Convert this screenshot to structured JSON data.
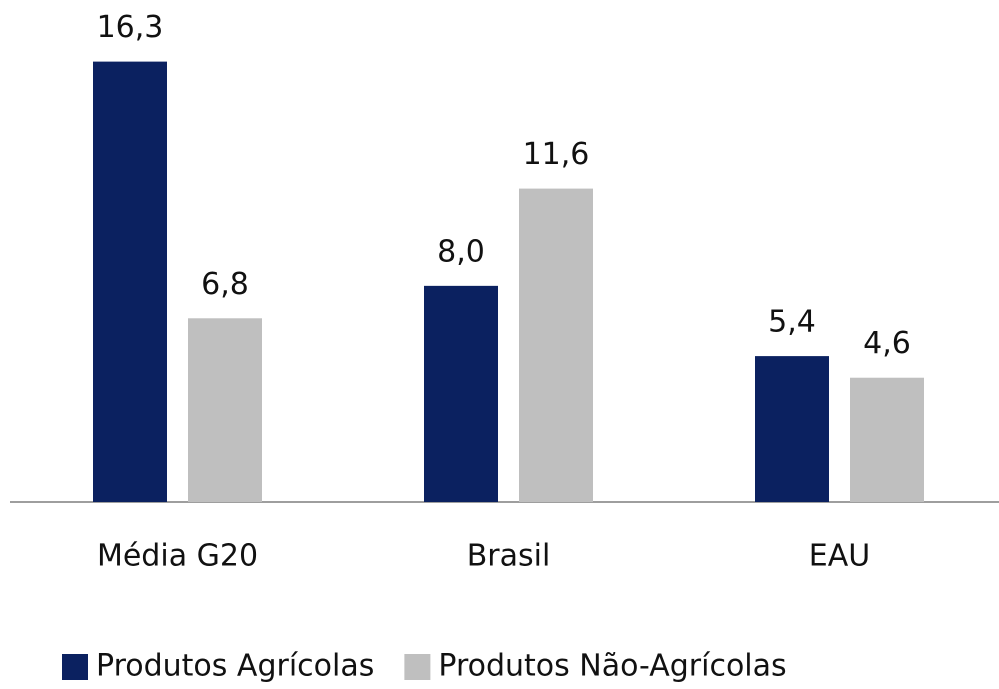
{
  "chart_data": {
    "type": "bar",
    "categories": [
      "Média G20",
      "Brasil",
      "EAU"
    ],
    "series": [
      {
        "name": "Produtos Agrícolas",
        "color": "#0b2160",
        "values": [
          16.3,
          8.0,
          5.4
        ],
        "value_labels": [
          "16,3",
          "8,0",
          "5,4"
        ]
      },
      {
        "name": "Produtos Não-Agrícolas",
        "color": "#bfbfbf",
        "values": [
          6.8,
          11.6,
          4.6
        ],
        "value_labels": [
          "6,8",
          "11,6",
          "4,6"
        ]
      }
    ],
    "ylim": [
      0,
      17.1
    ],
    "legend": "bottom"
  }
}
